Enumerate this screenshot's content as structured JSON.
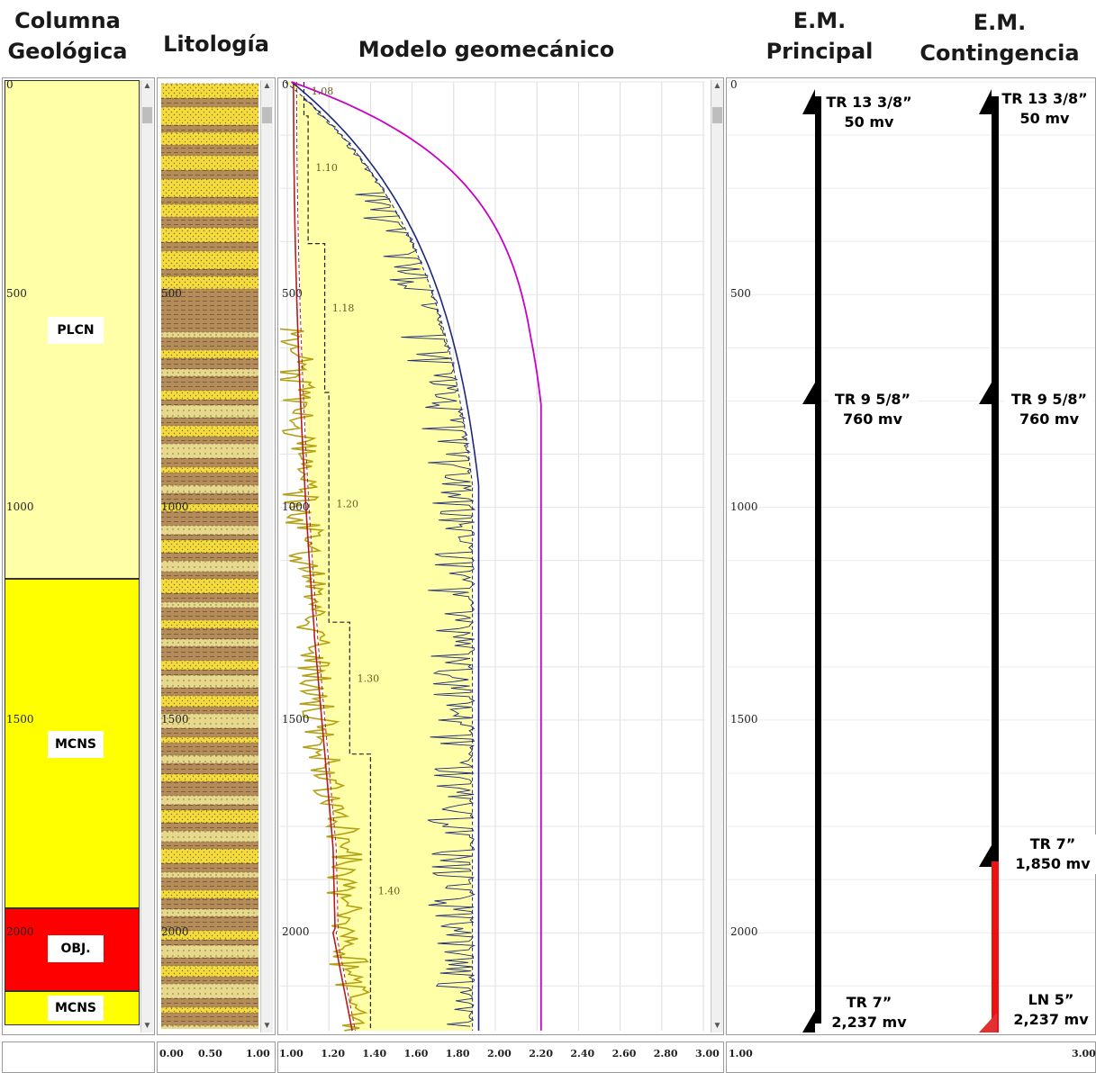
{
  "headers": {
    "geo_col": "Columna\nGeológica",
    "litologia": "Litología",
    "modelo": "Modelo geomecánico",
    "em_principal": "E.M.\nPrincipal",
    "em_contingencia": "E.M.\nContingencia"
  },
  "depth_ticks": [
    "0",
    "500",
    "1000",
    "1500",
    "2000"
  ],
  "formations": [
    {
      "label": "PLCN",
      "color": "#ffffa8"
    },
    {
      "label": "MCNS",
      "color": "#ffff00"
    },
    {
      "label": "OBJ.",
      "color": "#ff0000"
    },
    {
      "label": "MCNS",
      "color": "#ffff00"
    }
  ],
  "litho_scale": [
    "0.00",
    "0.50",
    "1.00"
  ],
  "model_scale": [
    "1.00",
    "1.20",
    "1.40",
    "1.60",
    "1.80",
    "2.00",
    "2.20",
    "2.40",
    "2.60",
    "2.80",
    "3.00"
  ],
  "em_scale": [
    "1.00",
    "3.00"
  ],
  "mud_weights": [
    "1.08",
    "1.10",
    "1.18",
    "1.20",
    "1.30",
    "1.40"
  ],
  "em_principal": [
    {
      "name": "TR 13 3/8”",
      "depth": "50 mv"
    },
    {
      "name": "TR 9 5/8”",
      "depth": "760 mv"
    },
    {
      "name": "TR 7”",
      "depth": "2,237 mv"
    }
  ],
  "em_contingencia": [
    {
      "name": "TR 13 3/8”",
      "depth": "50 mv"
    },
    {
      "name": "TR 9 5/8”",
      "depth": "760 mv"
    },
    {
      "name": "TR 7”",
      "depth": "1,850 mv"
    },
    {
      "name": "LN 5”",
      "depth": "2,237 mv"
    }
  ],
  "colors": {
    "plcn": "#ffffa8",
    "mcns": "#ffff00",
    "obj": "#ff0000",
    "sand": "#f5dc3c",
    "shale": "#b48c5a",
    "model_fill": "#ffffa8",
    "overburden": "#c800c8",
    "fracture": "#1e2878",
    "pore": "#b41e1e",
    "collapse": "#b4a014",
    "liner": "#ee1111"
  }
}
